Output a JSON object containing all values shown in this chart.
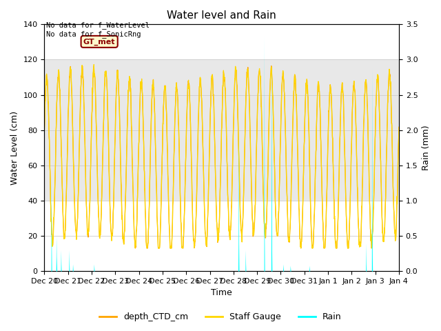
{
  "title": "Water level and Rain",
  "xlabel": "Time",
  "ylabel_left": "Water Level (cm)",
  "ylabel_right": "Rain (mm)",
  "annotation_text": "No data for f_WaterLevel\nNo data for f_SonicRng",
  "gt_met_label": "GT_met",
  "ylim_left": [
    0,
    140
  ],
  "ylim_right": [
    0,
    3.5
  ],
  "yticks_left": [
    0,
    20,
    40,
    60,
    80,
    100,
    120,
    140
  ],
  "yticks_right": [
    0.0,
    0.5,
    1.0,
    1.5,
    2.0,
    2.5,
    3.0,
    3.5
  ],
  "xtick_labels": [
    "Dec 20",
    "Dec 21",
    "Dec 22",
    "Dec 23",
    "Dec 24",
    "Dec 25",
    "Dec 26",
    "Dec 27",
    "Dec 28",
    "Dec 29",
    "Dec 30",
    "Dec 31",
    "Jan 1",
    "Jan 2",
    "Jan 3",
    "Jan 4"
  ],
  "color_ctd": "#FFA500",
  "color_staff": "#FFD700",
  "color_rain": "#00FFFF",
  "shaded_band_upper": [
    80,
    120
  ],
  "shaded_band_lower": [
    0,
    40
  ],
  "legend_labels": [
    "depth_CTD_cm",
    "Staff Gauge",
    "Rain"
  ],
  "legend_colors": [
    "#FFA500",
    "#FFD700",
    "#00FFFF"
  ],
  "background_color": "#ffffff",
  "grid_color": "#cccccc"
}
